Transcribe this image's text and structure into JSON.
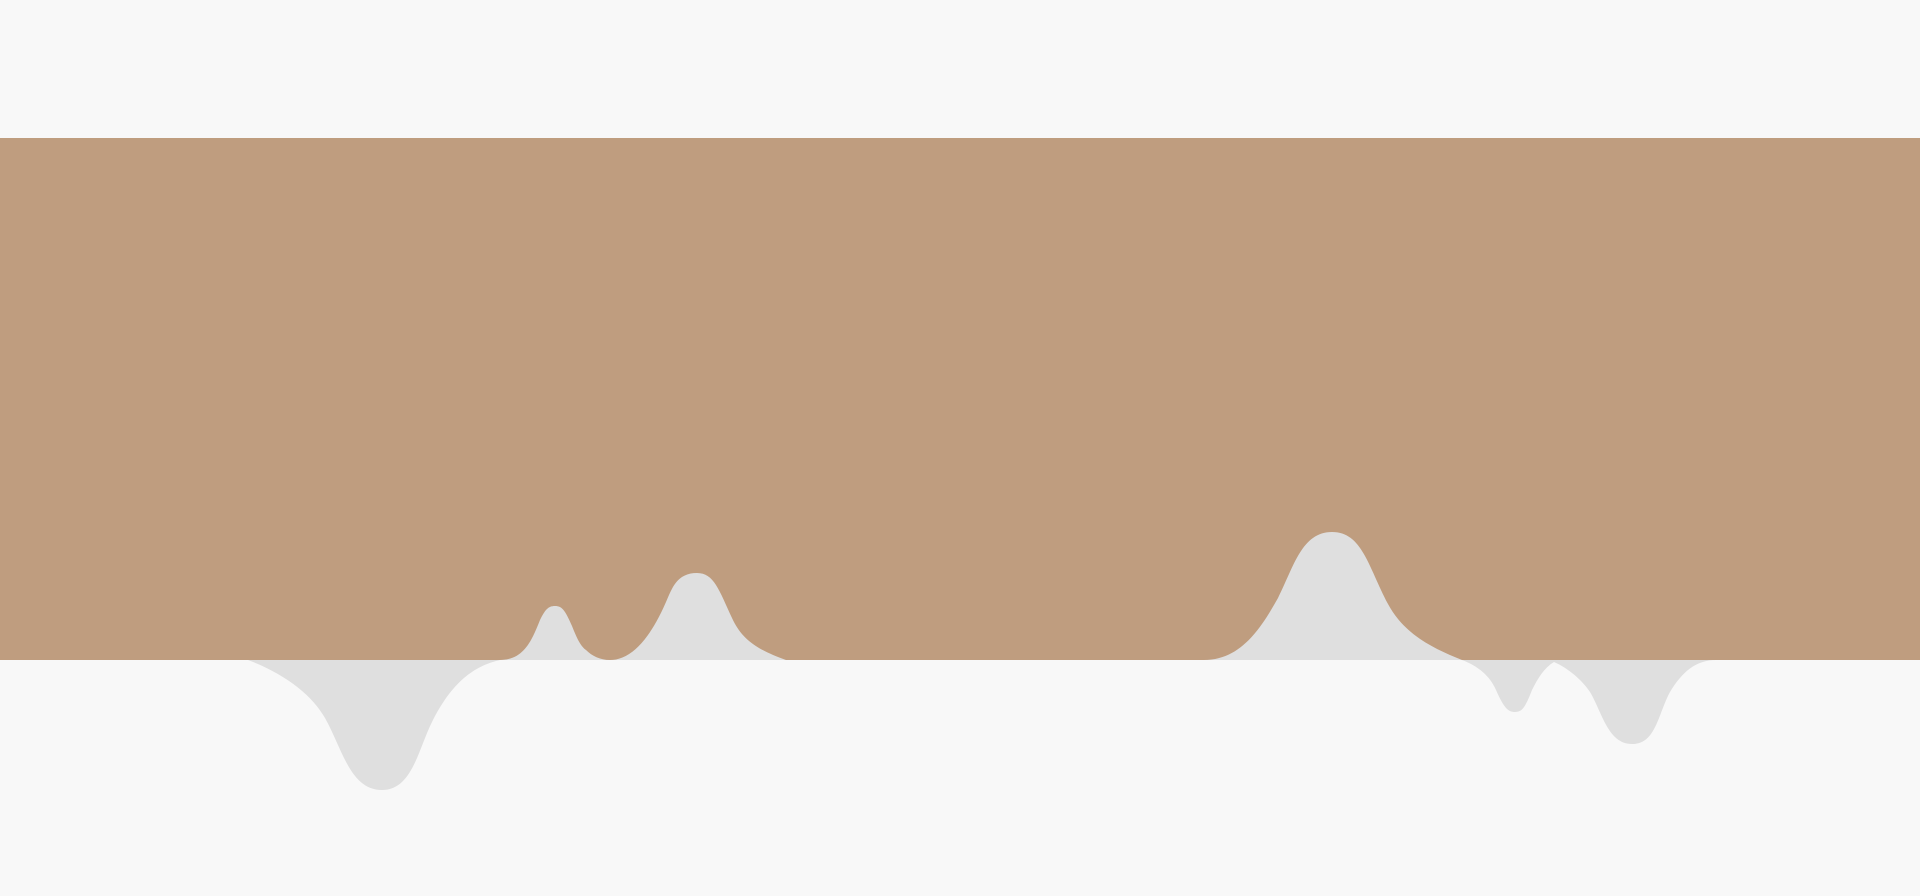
{
  "colors": {
    "page_background": "#f8f8f8",
    "band": "#bf9d7f",
    "drip": "#dfdfdf"
  }
}
